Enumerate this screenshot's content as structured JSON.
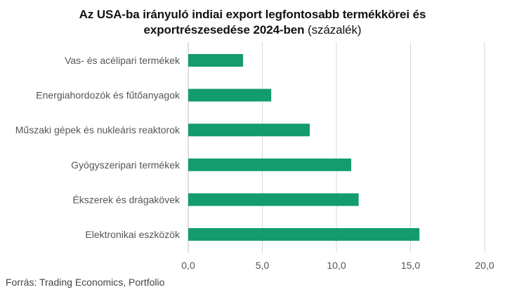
{
  "chart_data": {
    "type": "bar",
    "orientation": "horizontal",
    "title_line1": "Az USA-ba irányuló indiai export legfontosabb termékkörei és",
    "title_line2_bold": "exportrészesedése 2024-ben",
    "title_line2_suffix": " (százalék)",
    "categories": [
      "Vas- és acélipari termékek",
      "Energiahordozók és fűtőanyagok",
      "Műszaki gépek és nukleáris reaktorok",
      "Gyógyszeripari termékek",
      "Ékszerek és drágakövek",
      "Elektronikai eszközök"
    ],
    "values": [
      3.7,
      5.6,
      8.2,
      11.0,
      11.5,
      15.6
    ],
    "xlim": [
      0,
      20
    ],
    "xticks": [
      "0,0",
      "5,0",
      "10,0",
      "15,0",
      "20,0"
    ],
    "bar_color": "#149c6e",
    "grid": true
  },
  "source": "Forrás: Trading Economics, Portfolio"
}
